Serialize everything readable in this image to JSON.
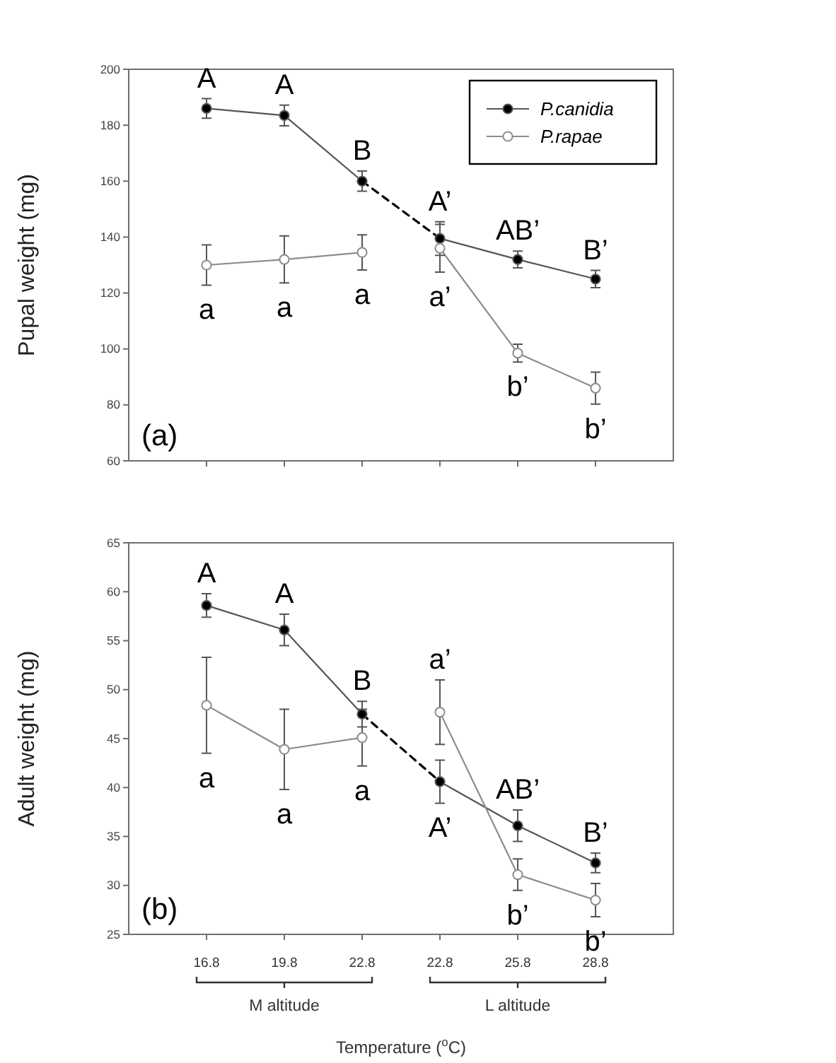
{
  "chart_data": [
    {
      "type": "line",
      "categories": [
        "16.8",
        "19.8",
        "22.8",
        "22.8",
        "25.8",
        "28.8"
      ],
      "ylabel": "Pupal weight (mg)",
      "ylim": [
        60,
        200
      ],
      "yticks": [
        60,
        80,
        100,
        120,
        140,
        160,
        180,
        200
      ],
      "tick_labels": "y",
      "marker": "circle",
      "legend": "top right",
      "annotations": [
        "(a)"
      ],
      "series": [
        {
          "name": "P.canidia",
          "color": "#555555",
          "colors": [
            "#000000",
            "#000000",
            "#000000",
            null,
            null,
            null
          ],
          "values": [
            186,
            183.5,
            160,
            null,
            null,
            null
          ],
          "errors": [
            3.5,
            3.7,
            3.6,
            null,
            null,
            null
          ],
          "value_labels": [
            "A",
            "A",
            "B",
            null,
            null,
            null
          ]
        },
        {
          "color": "#555555",
          "colors": [
            null,
            null,
            null,
            "#000000",
            "#000000",
            "#000000"
          ],
          "values": [
            null,
            null,
            null,
            139.5,
            132,
            125
          ],
          "errors": [
            null,
            null,
            null,
            6,
            3,
            3.1
          ],
          "value_labels": [
            null,
            null,
            null,
            "A’",
            "AB’",
            "B’"
          ]
        },
        {
          "color": "#000000",
          "values": [
            null,
            null,
            160,
            139.5,
            null,
            null
          ],
          "marker": "none",
          "line_style": "dashed"
        },
        {
          "name": "P.rapae",
          "color": "#8c8c8c",
          "colors": [
            "#ffffff",
            "#ffffff",
            "#ffffff",
            null,
            null,
            null
          ],
          "values": [
            130,
            132,
            134.5,
            null,
            null,
            null
          ],
          "errors": [
            7.2,
            8.4,
            6.3,
            null,
            null,
            null
          ],
          "value_labels": [
            "a",
            "a",
            "a",
            null,
            null,
            null
          ]
        },
        {
          "color": "#8c8c8c",
          "colors": [
            null,
            null,
            null,
            "#ffffff",
            "#ffffff",
            "#ffffff"
          ],
          "values": [
            null,
            null,
            null,
            136,
            98.5,
            86
          ],
          "errors": [
            null,
            null,
            null,
            8.5,
            3.2,
            5.7
          ],
          "value_labels": [
            null,
            null,
            null,
            "a’",
            "b’",
            "b’"
          ]
        }
      ]
    },
    {
      "type": "line",
      "categories": [
        "16.8",
        "19.8",
        "22.8",
        "22.8",
        "25.8",
        "28.8"
      ],
      "xlabel": "Temperature ($^{o}$C)",
      "ylabel": "Adult weight (mg)",
      "ylim": [
        25,
        65
      ],
      "yticks": [
        25,
        30,
        35,
        40,
        45,
        50,
        55,
        60,
        65
      ],
      "marker": "circle",
      "annotations": [
        "(b)",
        {
          "text": "M altitude",
          "x": "19.8"
        },
        {
          "text": "L altitude",
          "x": "25.8"
        }
      ],
      "series": [
        {
          "color": "#555555",
          "colors": [
            "#000000",
            "#000000",
            "#000000",
            null,
            null,
            null
          ],
          "values": [
            58.6,
            56.1,
            47.5,
            null,
            null,
            null
          ],
          "errors": [
            1.2,
            1.6,
            1.3,
            null,
            null,
            null
          ],
          "value_labels": [
            "A",
            "A",
            "B",
            null,
            null,
            null
          ]
        },
        {
          "color": "#555555",
          "colors": [
            null,
            null,
            null,
            "#000000",
            "#000000",
            "#000000"
          ],
          "values": [
            null,
            null,
            null,
            40.6,
            36.1,
            32.3
          ],
          "errors": [
            null,
            null,
            null,
            2.2,
            1.6,
            1.0
          ],
          "value_labels": [
            null,
            null,
            null,
            "A’",
            "AB’",
            "B’"
          ]
        },
        {
          "color": "#000000",
          "values": [
            null,
            null,
            47.5,
            40.6,
            null,
            null
          ],
          "marker": "none",
          "line_style": "dashed"
        },
        {
          "color": "#8c8c8c",
          "colors": [
            "#ffffff",
            "#ffffff",
            "#ffffff",
            null,
            null,
            null
          ],
          "values": [
            48.4,
            43.9,
            45.1,
            null,
            null,
            null
          ],
          "errors": [
            4.9,
            4.1,
            2.9,
            null,
            null,
            null
          ],
          "value_labels": [
            "a",
            "a",
            "a",
            null,
            null,
            null
          ]
        },
        {
          "color": "#8c8c8c",
          "colors": [
            null,
            null,
            null,
            "#ffffff",
            "#ffffff",
            "#ffffff"
          ],
          "values": [
            null,
            null,
            null,
            47.7,
            31.1,
            28.5
          ],
          "errors": [
            null,
            null,
            null,
            3.3,
            1.6,
            1.7
          ],
          "value_labels": [
            null,
            null,
            null,
            "a’",
            "b’",
            "b’"
          ]
        }
      ]
    }
  ]
}
